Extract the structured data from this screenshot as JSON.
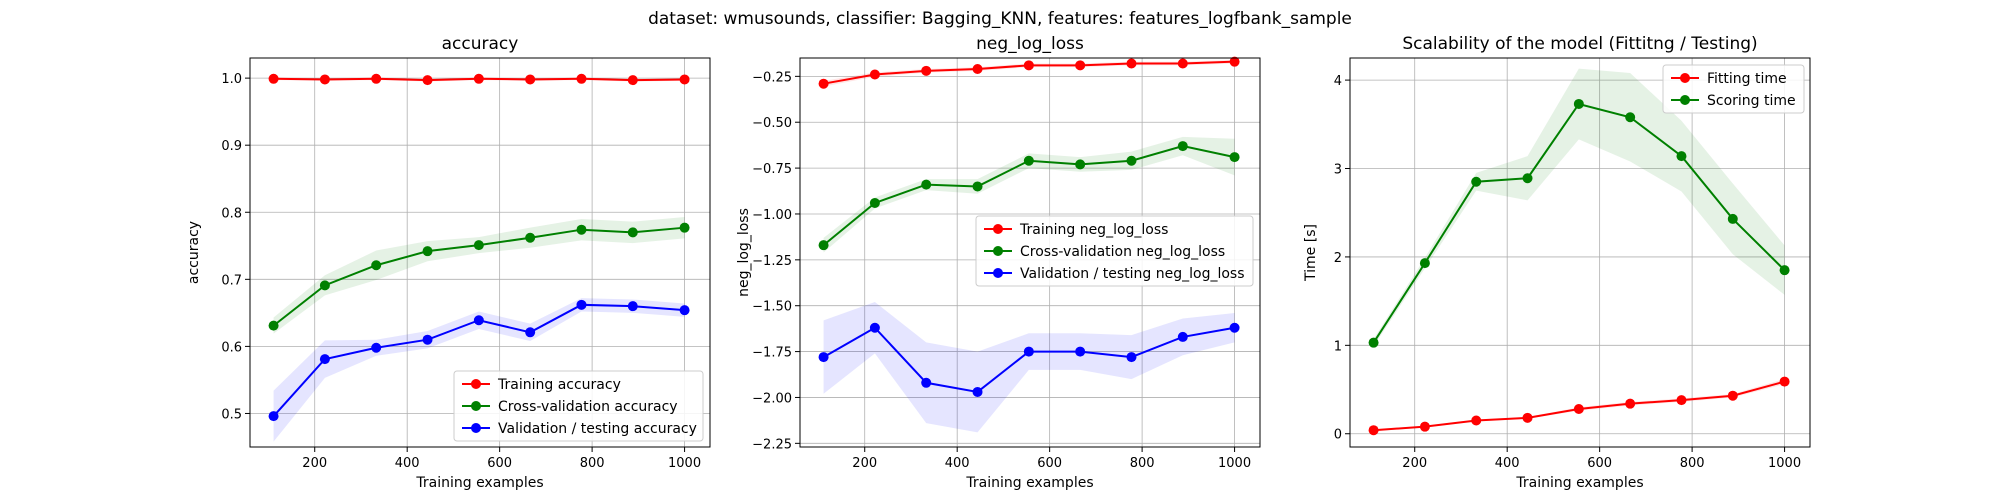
{
  "suptitle": "dataset: wmusounds, classifier: Bagging_KNN, features: features_logfbank_sample",
  "chart_data": [
    {
      "type": "line",
      "title": "accuracy",
      "xlabel": "Training examples",
      "ylabel": "accuracy",
      "xlim": [
        60,
        1055
      ],
      "ylim": [
        0.45,
        1.03
      ],
      "xticks": [
        200,
        400,
        600,
        800,
        1000
      ],
      "yticks": [
        0.5,
        0.6,
        0.7,
        0.8,
        0.9,
        1.0
      ],
      "ytick_labels": [
        "0.5",
        "0.6",
        "0.7",
        "0.8",
        "0.9",
        "1.0"
      ],
      "grid": true,
      "legend_position": "lower-right",
      "x": [
        111,
        222,
        333,
        444,
        555,
        666,
        777,
        888,
        1000
      ],
      "series": [
        {
          "name": "Training accuracy",
          "color": "#ff0000",
          "values": [
            0.999,
            0.998,
            0.999,
            0.997,
            0.999,
            0.998,
            0.999,
            0.997,
            0.998
          ],
          "band": [
            0.002,
            0.002,
            0.002,
            0.002,
            0.002,
            0.002,
            0.002,
            0.002,
            0.002
          ]
        },
        {
          "name": "Cross-validation accuracy",
          "color": "#008000",
          "values": [
            0.631,
            0.691,
            0.721,
            0.742,
            0.751,
            0.762,
            0.774,
            0.77,
            0.777
          ],
          "band": [
            0.012,
            0.015,
            0.022,
            0.015,
            0.012,
            0.015,
            0.016,
            0.016,
            0.016
          ]
        },
        {
          "name": "Validation / testing accuracy",
          "color": "#0000ff",
          "values": [
            0.496,
            0.581,
            0.598,
            0.61,
            0.639,
            0.621,
            0.662,
            0.66,
            0.654
          ],
          "band": [
            0.038,
            0.028,
            0.012,
            0.013,
            0.013,
            0.013,
            0.01,
            0.01,
            0.01
          ]
        }
      ]
    },
    {
      "type": "line",
      "title": "neg_log_loss",
      "xlabel": "Training examples",
      "ylabel": "neg_log_loss",
      "xlim": [
        60,
        1055
      ],
      "ylim": [
        -2.27,
        -0.15
      ],
      "xticks": [
        200,
        400,
        600,
        800,
        1000
      ],
      "yticks": [
        -2.25,
        -2.0,
        -1.75,
        -1.5,
        -1.25,
        -1.0,
        -0.75,
        -0.5,
        -0.25
      ],
      "ytick_labels": [
        "−2.25",
        "−2.00",
        "−1.75",
        "−1.50",
        "−1.25",
        "−1.00",
        "−0.75",
        "−0.50",
        "−0.25"
      ],
      "grid": true,
      "legend_position": "center-right",
      "x": [
        111,
        222,
        333,
        444,
        555,
        666,
        777,
        888,
        1000
      ],
      "series": [
        {
          "name": "Training neg_log_loss",
          "color": "#ff0000",
          "values": [
            -0.29,
            -0.24,
            -0.22,
            -0.21,
            -0.19,
            -0.19,
            -0.18,
            -0.18,
            -0.17
          ],
          "band": [
            0.015,
            0.012,
            0.01,
            0.01,
            0.01,
            0.01,
            0.01,
            0.01,
            0.01
          ]
        },
        {
          "name": "Cross-validation neg_log_loss",
          "color": "#008000",
          "values": [
            -1.17,
            -0.94,
            -0.84,
            -0.85,
            -0.71,
            -0.73,
            -0.71,
            -0.63,
            -0.69
          ],
          "band": [
            0.04,
            0.03,
            0.03,
            0.04,
            0.04,
            0.04,
            0.05,
            0.05,
            0.1
          ]
        },
        {
          "name": "Validation / testing neg_log_loss",
          "color": "#0000ff",
          "values": [
            -1.78,
            -1.62,
            -1.92,
            -1.97,
            -1.75,
            -1.75,
            -1.78,
            -1.67,
            -1.62
          ],
          "band": [
            0.2,
            0.14,
            0.22,
            0.22,
            0.1,
            0.1,
            0.12,
            0.1,
            0.08
          ]
        }
      ]
    },
    {
      "type": "line",
      "title": "Scalability of the model (Fittitng / Testing)",
      "xlabel": "Training examples",
      "ylabel": "Time [s]",
      "xlim": [
        60,
        1055
      ],
      "ylim": [
        -0.15,
        4.25
      ],
      "xticks": [
        200,
        400,
        600,
        800,
        1000
      ],
      "yticks": [
        0,
        1,
        2,
        3,
        4
      ],
      "ytick_labels": [
        "0",
        "1",
        "2",
        "3",
        "4"
      ],
      "grid": true,
      "legend_position": "top-right",
      "x": [
        111,
        222,
        333,
        444,
        555,
        666,
        777,
        888,
        1000
      ],
      "series": [
        {
          "name": "Fitting time",
          "color": "#ff0000",
          "values": [
            0.04,
            0.08,
            0.15,
            0.18,
            0.28,
            0.34,
            0.38,
            0.43,
            0.59
          ],
          "band": [
            0.01,
            0.01,
            0.01,
            0.01,
            0.02,
            0.02,
            0.02,
            0.02,
            0.03
          ]
        },
        {
          "name": "Scoring time",
          "color": "#008000",
          "values": [
            1.03,
            1.93,
            2.85,
            2.89,
            3.73,
            3.58,
            3.14,
            2.43,
            1.85
          ],
          "band": [
            0.04,
            0.06,
            0.1,
            0.25,
            0.4,
            0.5,
            0.4,
            0.4,
            0.28
          ]
        }
      ]
    }
  ]
}
